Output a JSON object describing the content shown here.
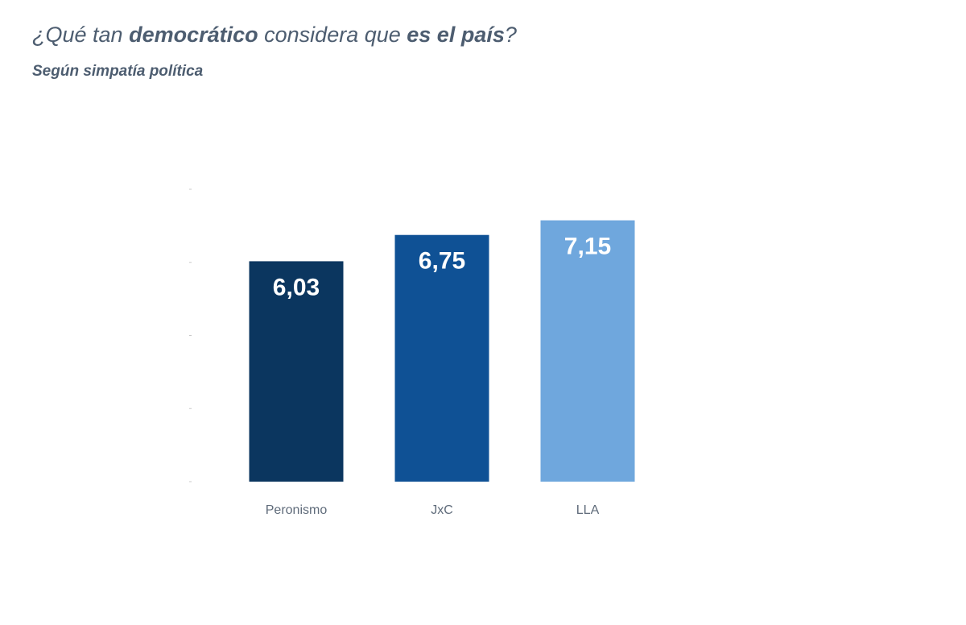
{
  "chart_data": {
    "type": "bar",
    "title": [
      {
        "text": "¿Qué tan ",
        "bold": false
      },
      {
        "text": "democrático",
        "bold": true
      },
      {
        "text": " considera que ",
        "bold": false
      },
      {
        "text": "es el país",
        "bold": true
      },
      {
        "text": "?",
        "bold": false
      }
    ],
    "subtitle": "Según simpatía política",
    "categories": [
      "Peronismo",
      "JxC",
      "LLA"
    ],
    "values": [
      6.03,
      6.75,
      7.15
    ],
    "value_labels": [
      "6,03",
      "6,75",
      "7,15"
    ],
    "colors": [
      "#0b365f",
      "#0f5195",
      "#6fa7dd"
    ],
    "ylim": [
      0,
      8
    ],
    "yticks": [
      0,
      2,
      4,
      6,
      8
    ]
  }
}
